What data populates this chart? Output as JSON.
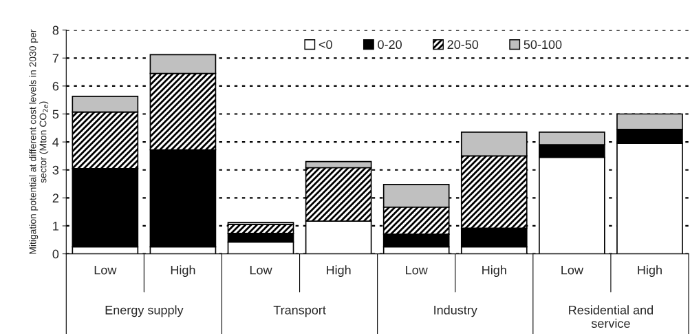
{
  "chart_data": {
    "type": "bar",
    "stacked": true,
    "ylabel": "Mitigation potential at different cost levels in 2030 per\nsector (Mton CO$_{2e}$)",
    "categories": [
      "Low",
      "High",
      "Low",
      "High",
      "Low",
      "High",
      "Low",
      "High"
    ],
    "series": [
      {
        "name": "<0",
        "color": "#ffffff",
        "values": [
          0.25,
          0.25,
          0.42,
          1.17,
          0.25,
          0.25,
          3.45,
          3.95
        ]
      },
      {
        "name": "0-20",
        "color": "#000000",
        "values": [
          2.8,
          3.47,
          0.31,
          0,
          0.45,
          0.67,
          0.45,
          0.5
        ]
      },
      {
        "name": "20-50",
        "color": "#000000",
        "values": [
          2.02,
          2.73,
          0.32,
          1.91,
          0.97,
          2.58,
          0,
          0
        ]
      },
      {
        "name": "50-100",
        "color": "#c0c0c0",
        "values": [
          0.56,
          0.67,
          0.07,
          0.22,
          0.81,
          0.85,
          0.45,
          0.55
        ]
      }
    ],
    "annotations": [
      "Energy supply",
      "Transport",
      "Industry",
      "Residential and\nservice"
    ],
    "ylim": [
      0,
      8
    ],
    "yticks": [
      0,
      1,
      2,
      3,
      4,
      5,
      6,
      7,
      8
    ],
    "grid": "y",
    "legend": "top right"
  }
}
